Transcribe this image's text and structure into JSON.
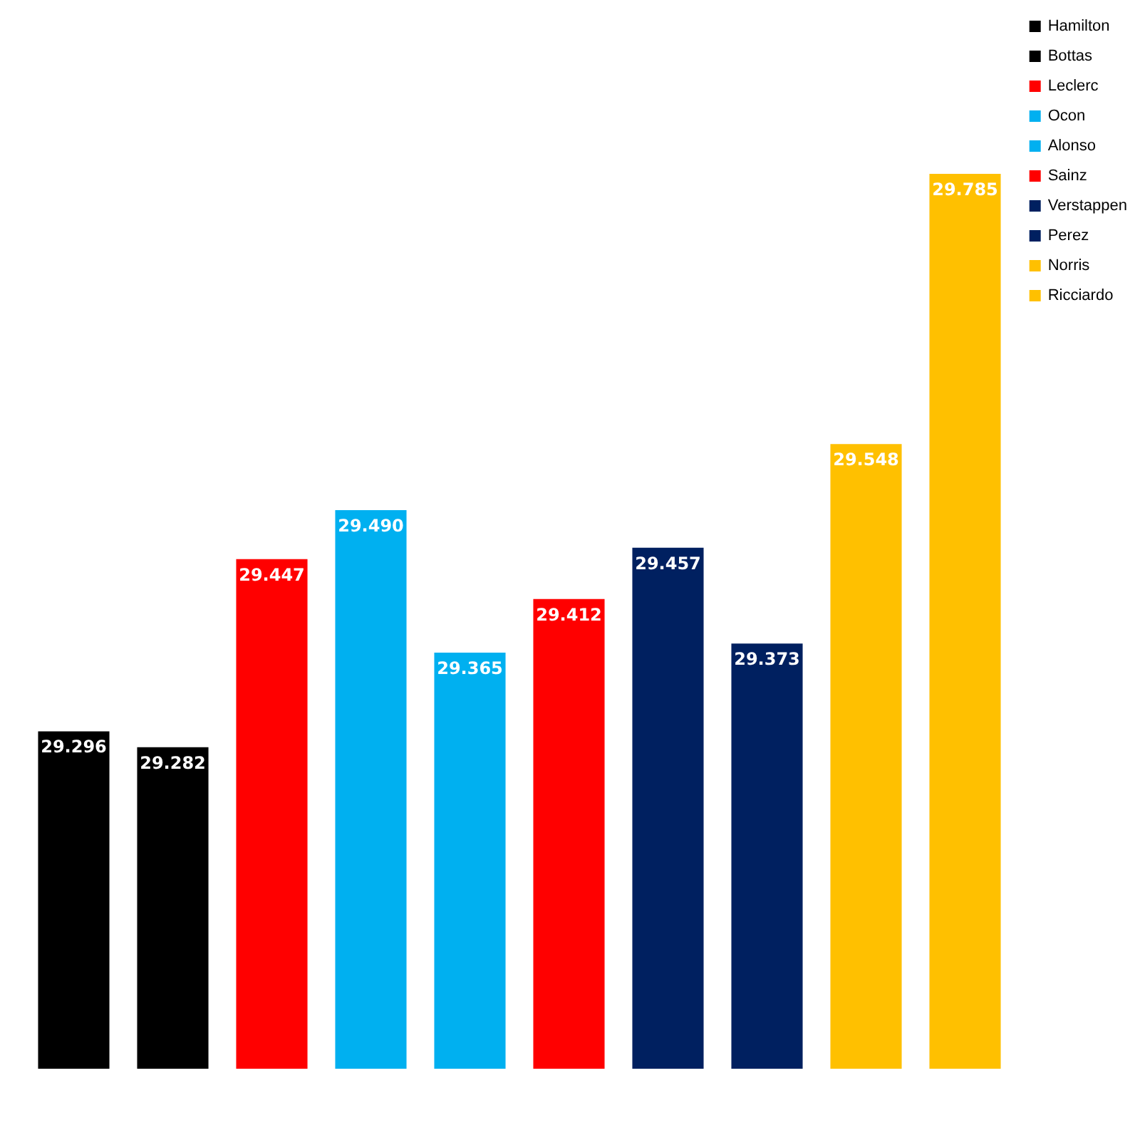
{
  "chart_data": {
    "type": "bar",
    "categories": [
      null,
      null,
      null,
      null,
      null,
      null,
      null,
      null,
      null,
      null
    ],
    "series": [
      {
        "name": "Hamilton",
        "color": "#000000",
        "values": [
          29.296,
          null,
          null,
          null,
          null,
          null,
          null,
          null,
          null,
          null
        ],
        "value_labels": [
          "29.296",
          null,
          null,
          null,
          null,
          null,
          null,
          null,
          null,
          null
        ]
      },
      {
        "name": "Bottas",
        "color": "#000000",
        "values": [
          null,
          29.282,
          null,
          null,
          null,
          null,
          null,
          null,
          null,
          null
        ],
        "value_labels": [
          null,
          "29.282",
          null,
          null,
          null,
          null,
          null,
          null,
          null,
          null
        ]
      },
      {
        "name": "Leclerc",
        "color": "#ff0000",
        "values": [
          null,
          null,
          29.447,
          null,
          null,
          null,
          null,
          null,
          null,
          null
        ],
        "value_labels": [
          null,
          null,
          "29.447",
          null,
          null,
          null,
          null,
          null,
          null,
          null
        ]
      },
      {
        "name": "Ocon",
        "color": "#00b0f0",
        "values": [
          null,
          null,
          null,
          29.49,
          null,
          null,
          null,
          null,
          null,
          null
        ],
        "value_labels": [
          null,
          null,
          null,
          "29.490",
          null,
          null,
          null,
          null,
          null,
          null
        ]
      },
      {
        "name": "Alonso",
        "color": "#00b0f0",
        "values": [
          null,
          null,
          null,
          null,
          29.365,
          null,
          null,
          null,
          null,
          null
        ],
        "value_labels": [
          null,
          null,
          null,
          null,
          "29.365",
          null,
          null,
          null,
          null,
          null
        ]
      },
      {
        "name": "Sainz",
        "color": "#ff0000",
        "values": [
          null,
          null,
          null,
          null,
          null,
          29.412,
          null,
          null,
          null,
          null
        ],
        "value_labels": [
          null,
          null,
          null,
          null,
          null,
          "29.412",
          null,
          null,
          null,
          null
        ]
      },
      {
        "name": "Verstappen",
        "color": "#002060",
        "values": [
          null,
          null,
          null,
          null,
          null,
          null,
          29.457,
          null,
          null,
          null
        ],
        "value_labels": [
          null,
          null,
          null,
          null,
          null,
          null,
          "29.457",
          null,
          null,
          null
        ]
      },
      {
        "name": "Perez",
        "color": "#002060",
        "values": [
          null,
          null,
          null,
          null,
          null,
          null,
          null,
          29.373,
          null,
          null
        ],
        "value_labels": [
          null,
          null,
          null,
          null,
          null,
          null,
          null,
          "29.373",
          null,
          null
        ]
      },
      {
        "name": "Norris",
        "color": "#ffc000",
        "values": [
          null,
          null,
          null,
          null,
          null,
          null,
          null,
          null,
          29.548,
          null
        ],
        "value_labels": [
          null,
          null,
          null,
          null,
          null,
          null,
          null,
          null,
          "29.548",
          null
        ]
      },
      {
        "name": "Ricciardo",
        "color": "#ffc000",
        "values": [
          null,
          null,
          null,
          null,
          null,
          null,
          null,
          null,
          null,
          29.785
        ],
        "value_labels": [
          null,
          null,
          null,
          null,
          null,
          null,
          null,
          null,
          null,
          "29.785"
        ]
      }
    ],
    "stacked": true,
    "ylim": [
      29,
      29.785
    ],
    "tick_labels": false,
    "grid": false,
    "legend": "top right"
  }
}
